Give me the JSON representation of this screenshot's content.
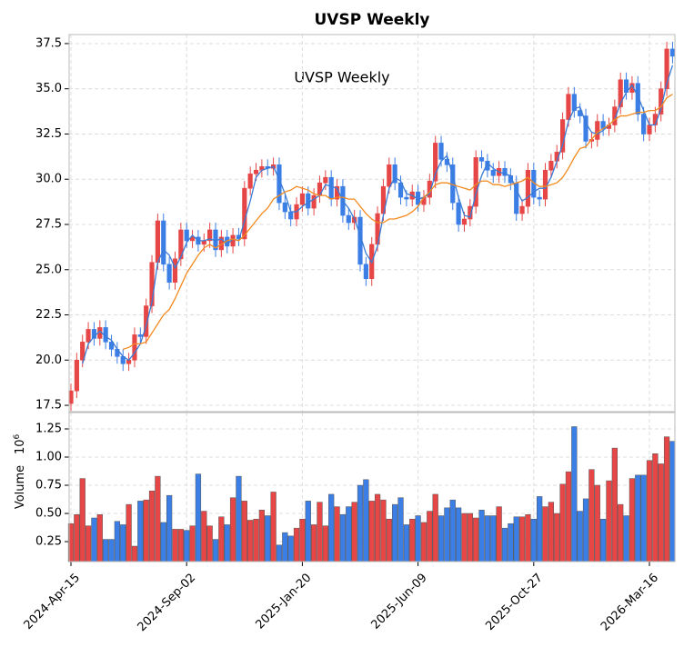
{
  "chart_data": {
    "type": "candlestick",
    "title": "UVSP  Weekly",
    "annotation": "UVSP  Weekly",
    "categories": [
      "2024-Apr-15",
      null,
      null,
      null,
      null,
      null,
      null,
      null,
      null,
      null,
      null,
      null,
      null,
      null,
      null,
      null,
      null,
      null,
      null,
      null,
      "2024-Sep-02",
      null,
      null,
      null,
      null,
      null,
      null,
      null,
      null,
      null,
      null,
      null,
      null,
      null,
      null,
      null,
      null,
      null,
      null,
      null,
      "2025-Jan-20",
      null,
      null,
      null,
      null,
      null,
      null,
      null,
      null,
      null,
      null,
      null,
      null,
      null,
      null,
      null,
      null,
      null,
      null,
      null,
      "2025-Jun-09",
      null,
      null,
      null,
      null,
      null,
      null,
      null,
      null,
      null,
      null,
      null,
      null,
      null,
      null,
      null,
      null,
      null,
      null,
      null,
      "2025-Oct-27",
      null,
      null,
      null,
      null,
      null,
      null,
      null,
      null,
      null,
      null,
      null,
      null,
      null,
      null,
      null,
      null,
      null,
      null,
      null,
      "2026-Mar-16",
      null,
      null,
      null,
      null
    ],
    "open": [
      17.6,
      18.3,
      20.0,
      21.0,
      21.7,
      21.2,
      21.8,
      21.0,
      20.6,
      20.2,
      19.8,
      20.0,
      21.4,
      21.3,
      23.0,
      25.4,
      27.7,
      25.3,
      24.3,
      25.6,
      27.2,
      26.6,
      26.8,
      26.4,
      26.6,
      27.2,
      26.1,
      26.8,
      26.3,
      26.9,
      26.7,
      29.5,
      30.3,
      30.5,
      30.7,
      30.6,
      30.8,
      28.7,
      28.2,
      27.8,
      28.6,
      29.2,
      28.4,
      29.1,
      29.8,
      30.1,
      28.9,
      29.6,
      28.0,
      27.6,
      27.9,
      25.3,
      24.5,
      26.4,
      28.1,
      29.6,
      30.8,
      29.8,
      29.0,
      28.9,
      29.3,
      28.6,
      29.0,
      29.9,
      32.0,
      31.1,
      30.8,
      28.7,
      27.5,
      27.8,
      28.5,
      31.2,
      31.0,
      30.5,
      30.2,
      30.6,
      30.2,
      29.8,
      28.1,
      28.5,
      30.5,
      29.0,
      28.9,
      30.5,
      31.0,
      31.5,
      33.3,
      34.7,
      33.8,
      33.5,
      32.1,
      32.2,
      33.2,
      32.8,
      33.0,
      34.0,
      35.5,
      34.8,
      35.3,
      33.6,
      32.5,
      33.0,
      33.6,
      35.0,
      37.2
    ],
    "high": [
      18.7,
      20.4,
      21.4,
      22.1,
      22.1,
      22.2,
      22.2,
      21.4,
      21.0,
      20.6,
      20.4,
      21.8,
      21.8,
      23.4,
      25.8,
      28.1,
      28.1,
      25.7,
      26.0,
      27.6,
      27.6,
      27.2,
      27.2,
      27.0,
      27.6,
      27.6,
      27.2,
      27.2,
      27.3,
      27.3,
      29.9,
      30.7,
      30.9,
      31.1,
      31.1,
      31.2,
      31.2,
      29.1,
      28.6,
      29.0,
      29.6,
      29.6,
      29.5,
      30.2,
      30.5,
      30.5,
      30.0,
      30.0,
      28.4,
      28.3,
      28.3,
      25.7,
      26.8,
      28.5,
      30.0,
      31.2,
      31.2,
      30.2,
      29.4,
      29.7,
      29.7,
      29.4,
      30.3,
      32.4,
      32.4,
      31.5,
      31.2,
      29.1,
      28.2,
      28.9,
      31.6,
      31.6,
      31.4,
      30.9,
      31.0,
      31.0,
      30.6,
      30.2,
      28.9,
      30.9,
      30.9,
      29.4,
      30.9,
      31.4,
      31.9,
      33.7,
      35.1,
      35.1,
      34.2,
      33.9,
      32.6,
      33.6,
      33.6,
      33.4,
      34.4,
      35.9,
      35.9,
      35.7,
      35.7,
      34.0,
      33.4,
      34.0,
      35.4,
      37.6,
      37.6
    ],
    "low": [
      17.2,
      17.9,
      19.6,
      20.6,
      20.8,
      20.8,
      20.6,
      20.2,
      19.8,
      19.4,
      19.4,
      19.6,
      20.9,
      20.9,
      22.6,
      25.0,
      24.9,
      23.9,
      23.9,
      25.2,
      26.2,
      26.2,
      26.0,
      26.0,
      26.2,
      25.7,
      25.7,
      25.9,
      25.9,
      26.3,
      26.3,
      29.1,
      29.9,
      30.1,
      30.2,
      30.2,
      28.3,
      27.8,
      27.4,
      27.4,
      28.2,
      28.0,
      28.0,
      28.7,
      29.4,
      28.5,
      28.5,
      27.6,
      27.2,
      27.2,
      24.9,
      24.1,
      24.1,
      26.0,
      27.7,
      29.2,
      29.4,
      28.6,
      28.5,
      28.5,
      28.2,
      28.2,
      28.6,
      29.5,
      30.7,
      30.4,
      28.3,
      27.1,
      27.1,
      27.4,
      28.1,
      30.6,
      30.1,
      29.8,
      29.8,
      29.8,
      29.4,
      27.7,
      27.7,
      28.1,
      28.6,
      28.5,
      28.5,
      30.1,
      30.6,
      31.1,
      32.9,
      33.4,
      33.1,
      31.7,
      31.7,
      31.8,
      32.4,
      32.4,
      32.6,
      33.6,
      34.4,
      34.4,
      33.2,
      32.1,
      32.1,
      32.6,
      33.2,
      34.6,
      36.4
    ],
    "close": [
      18.3,
      20.0,
      21.0,
      21.7,
      21.2,
      21.8,
      21.0,
      20.6,
      20.2,
      19.8,
      20.0,
      21.4,
      21.3,
      23.0,
      25.4,
      27.7,
      25.3,
      24.3,
      25.6,
      27.2,
      26.6,
      26.8,
      26.4,
      26.6,
      27.2,
      26.1,
      26.8,
      26.3,
      26.9,
      26.7,
      29.5,
      30.3,
      30.5,
      30.7,
      30.6,
      30.8,
      28.7,
      28.2,
      27.8,
      28.6,
      29.2,
      28.4,
      29.1,
      29.8,
      30.1,
      28.9,
      29.6,
      28.0,
      27.6,
      27.9,
      25.3,
      24.5,
      26.4,
      28.1,
      29.6,
      30.8,
      29.8,
      29.0,
      28.9,
      29.3,
      28.6,
      29.0,
      29.9,
      32.0,
      31.1,
      30.8,
      28.7,
      27.5,
      27.8,
      28.5,
      31.2,
      31.0,
      30.5,
      30.2,
      30.6,
      30.2,
      29.8,
      28.1,
      28.5,
      30.5,
      29.0,
      28.9,
      30.5,
      31.0,
      31.5,
      33.3,
      34.7,
      33.8,
      33.5,
      32.1,
      32.2,
      33.2,
      32.8,
      33.0,
      34.0,
      35.5,
      34.8,
      35.3,
      33.6,
      32.5,
      33.0,
      33.6,
      35.0,
      37.2,
      36.8
    ],
    "volume": [
      0.41,
      0.49,
      0.81,
      0.39,
      0.46,
      0.49,
      0.27,
      0.27,
      0.43,
      0.4,
      0.58,
      0.21,
      0.61,
      0.62,
      0.7,
      0.83,
      0.42,
      0.66,
      0.36,
      0.36,
      0.35,
      0.39,
      0.85,
      0.52,
      0.39,
      0.27,
      0.47,
      0.4,
      0.64,
      0.83,
      0.61,
      0.44,
      0.45,
      0.53,
      0.48,
      0.69,
      0.22,
      0.33,
      0.3,
      0.37,
      0.45,
      0.61,
      0.4,
      0.6,
      0.39,
      0.67,
      0.56,
      0.49,
      0.56,
      0.6,
      0.75,
      0.8,
      0.61,
      0.67,
      0.62,
      0.45,
      0.58,
      0.64,
      0.4,
      0.45,
      0.48,
      0.42,
      0.52,
      0.67,
      0.48,
      0.55,
      0.62,
      0.55,
      0.5,
      0.5,
      0.46,
      0.53,
      0.48,
      0.48,
      0.56,
      0.37,
      0.41,
      0.47,
      0.47,
      0.49,
      0.45,
      0.65,
      0.56,
      0.6,
      0.5,
      0.76,
      0.87,
      1.27,
      0.52,
      0.63,
      0.89,
      0.75,
      0.45,
      0.79,
      1.08,
      0.58,
      0.48,
      0.81,
      0.84,
      0.84,
      0.97,
      1.03,
      0.94,
      1.18,
      1.14
    ],
    "ma_lines": [
      {
        "color": "#3a7bd5",
        "values": [
          null,
          null,
          19.8,
          20.9,
          21.3,
          21.6,
          21.3,
          21.1,
          20.6,
          20.2,
          20.0,
          20.4,
          20.9,
          21.9,
          23.2,
          25.4,
          26.1,
          25.8,
          25.1,
          25.7,
          26.5,
          26.9,
          26.6,
          26.6,
          26.7,
          26.6,
          26.7,
          26.4,
          26.7,
          26.6,
          27.7,
          28.8,
          30.1,
          30.5,
          30.6,
          30.7,
          30.0,
          29.2,
          28.2,
          28.2,
          28.5,
          28.7,
          28.9,
          29.1,
          29.7,
          29.6,
          29.5,
          28.8,
          28.4,
          27.8,
          26.9,
          25.9,
          25.4,
          26.3,
          28.0,
          29.5,
          30.1,
          29.9,
          29.2,
          29.1,
          28.9,
          29.0,
          29.2,
          30.3,
          31.0,
          31.3,
          30.2,
          29.0,
          28.0,
          27.9,
          29.2,
          30.2,
          30.9,
          30.6,
          30.4,
          30.3,
          30.2,
          29.4,
          28.8,
          29.0,
          29.3,
          29.5,
          29.5,
          30.1,
          31.0,
          31.9,
          33.2,
          33.9,
          34.0,
          33.1,
          32.6,
          32.5,
          32.7,
          33.0,
          33.3,
          34.2,
          34.8,
          35.2,
          34.6,
          33.8,
          33.0,
          33.0,
          33.9,
          35.3,
          36.3
        ]
      },
      {
        "color": "#f28a1e",
        "values": [
          null,
          null,
          null,
          null,
          null,
          null,
          null,
          null,
          null,
          20.6,
          20.7,
          20.9,
          20.9,
          21.0,
          21.5,
          22.0,
          22.5,
          22.8,
          23.4,
          24.1,
          24.8,
          25.3,
          25.8,
          26.2,
          26.4,
          26.2,
          26.4,
          26.6,
          26.7,
          26.6,
          26.9,
          27.3,
          27.7,
          28.1,
          28.4,
          28.9,
          29.1,
          29.3,
          29.4,
          29.6,
          29.5,
          29.4,
          29.2,
          29.1,
          29.1,
          28.9,
          29.0,
          29.0,
          28.9,
          28.9,
          28.5,
          28.1,
          27.8,
          27.6,
          27.6,
          27.8,
          27.8,
          27.9,
          28.0,
          28.2,
          28.5,
          29.0,
          29.3,
          29.7,
          29.8,
          29.8,
          29.7,
          29.6,
          29.5,
          29.4,
          29.7,
          29.9,
          29.9,
          29.7,
          29.7,
          29.6,
          29.7,
          29.8,
          29.9,
          30.1,
          29.8,
          29.6,
          29.6,
          29.7,
          29.8,
          30.1,
          30.6,
          31.2,
          31.7,
          31.8,
          32.2,
          32.6,
          32.8,
          33.0,
          33.3,
          33.5,
          33.5,
          33.6,
          33.7,
          33.7,
          33.8,
          33.8,
          34.0,
          34.5,
          34.7
        ]
      }
    ],
    "up_color": "#e64646",
    "down_color": "#3a7ee6",
    "ylim": [
      17.15,
      38.0
    ],
    "yticks": [
      17.5,
      {
        "value": 20,
        "label": "20.0"
      },
      22.5,
      {
        "value": 25,
        "label": "25.0"
      },
      27.5,
      {
        "value": 30,
        "label": "30.0"
      },
      32.5,
      {
        "value": 35,
        "label": "35.0"
      },
      37.5
    ],
    "volume_label": "Volume",
    "volume_unit": {
      "base": "10",
      "exponent": "6"
    },
    "volume_ylim": [
      0.073,
      1.395
    ],
    "volume_yticks": [
      0.25,
      {
        "value": 0.5,
        "label": "0.50"
      },
      0.75,
      {
        "value": 1,
        "label": "1.00"
      },
      1.25
    ],
    "grid": true
  }
}
